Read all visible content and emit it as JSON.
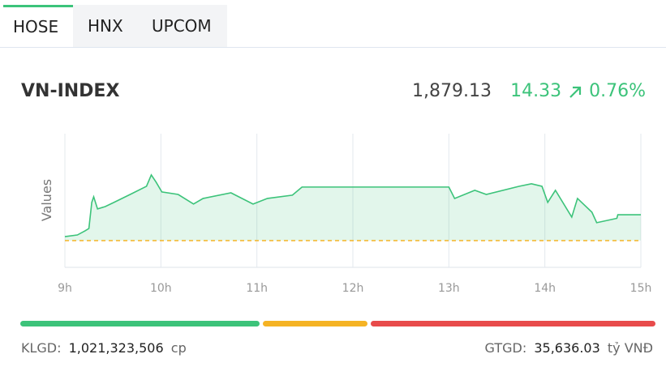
{
  "tabs": [
    "HOSE",
    "HNX",
    "UPCOM"
  ],
  "index": {
    "name": "VN-INDEX",
    "value": "1,879.13",
    "change": "14.33",
    "percent": "0.76%"
  },
  "chart_data": {
    "type": "line",
    "y_label": "Values",
    "x": [
      9.0,
      9.13,
      9.21,
      9.25,
      9.28,
      9.3,
      9.34,
      9.42,
      9.51,
      9.68,
      9.85,
      9.9,
      9.95,
      10.01,
      10.18,
      10.34,
      10.44,
      10.73,
      10.96,
      11.11,
      11.37,
      11.47,
      13.0,
      13.06,
      13.27,
      13.39,
      13.73,
      13.86,
      13.97,
      14.03,
      14.11,
      14.28,
      14.34,
      14.49,
      14.54,
      14.75,
      14.76,
      15.0
    ],
    "series": [
      {
        "color": "#3cc37a",
        "values": [
          1867.0,
          1867.9,
          1870.2,
          1871.5,
          1885.9,
          1889.0,
          1882.3,
          1883.6,
          1885.9,
          1890.3,
          1894.8,
          1901.1,
          1897.1,
          1891.7,
          1890.3,
          1885.0,
          1888.1,
          1891.2,
          1885.0,
          1888.1,
          1889.9,
          1894.4,
          1894.4,
          1888.1,
          1892.6,
          1890.3,
          1894.8,
          1896.2,
          1894.8,
          1885.9,
          1892.6,
          1877.8,
          1888.1,
          1880.5,
          1874.7,
          1877.1,
          1879.1,
          1879.1
        ]
      }
    ],
    "reference": 1864.8,
    "reference_color": "#f5b324",
    "xlim": [
      9,
      15
    ],
    "ylim": [
      1850,
      1923.9
    ],
    "xticks": [
      {
        "value": 9,
        "label": "9h"
      },
      {
        "value": 10,
        "label": "10h"
      },
      {
        "value": 11,
        "label": "11h"
      },
      {
        "value": 12,
        "label": "12h"
      },
      {
        "value": 13,
        "label": "13h"
      },
      {
        "value": 14,
        "label": "14h"
      },
      {
        "value": 15,
        "label": "15h"
      }
    ],
    "grid": true
  },
  "footer": {
    "volume_label": "KLGD:",
    "volume": "1,021,323,506",
    "volume_unit": "cp",
    "value_label": "GTGD:",
    "value": "35,636.03",
    "value_unit": "tỷ VNĐ"
  }
}
